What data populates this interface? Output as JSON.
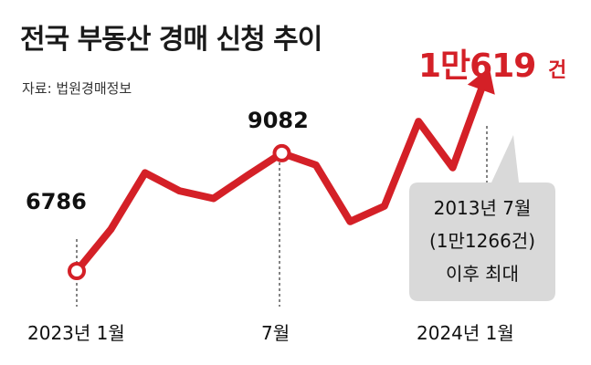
{
  "title": "전국 부동산 경매 신청 추이",
  "source": "자료: 법원경매정보",
  "colors": {
    "line": "#d42027",
    "callout": "#d9d9d9",
    "text": "#111111"
  },
  "chart_data": {
    "type": "line",
    "title": "전국 부동산 경매 신청 추이",
    "x": [
      "2023-01",
      "2023-02",
      "2023-03",
      "2023-04",
      "2023-05",
      "2023-06",
      "2023-07",
      "2023-08",
      "2023-09",
      "2023-10",
      "2023-11",
      "2023-12",
      "2024-01"
    ],
    "values": [
      6786,
      7600,
      8700,
      8350,
      8200,
      8650,
      9082,
      8850,
      7750,
      8050,
      9700,
      8800,
      10619
    ],
    "xticks": [
      "2023년 1월",
      "7월",
      "2024년 1월"
    ],
    "point_labels": {
      "first": "6786",
      "mid": "9082",
      "last_num": "1만619",
      "last_unit": "건"
    },
    "callout": [
      "2013년 7월",
      "(1만1266건)",
      "이후 최대"
    ],
    "ylim": [
      6200,
      11000
    ],
    "grid": false,
    "legend": "none"
  }
}
